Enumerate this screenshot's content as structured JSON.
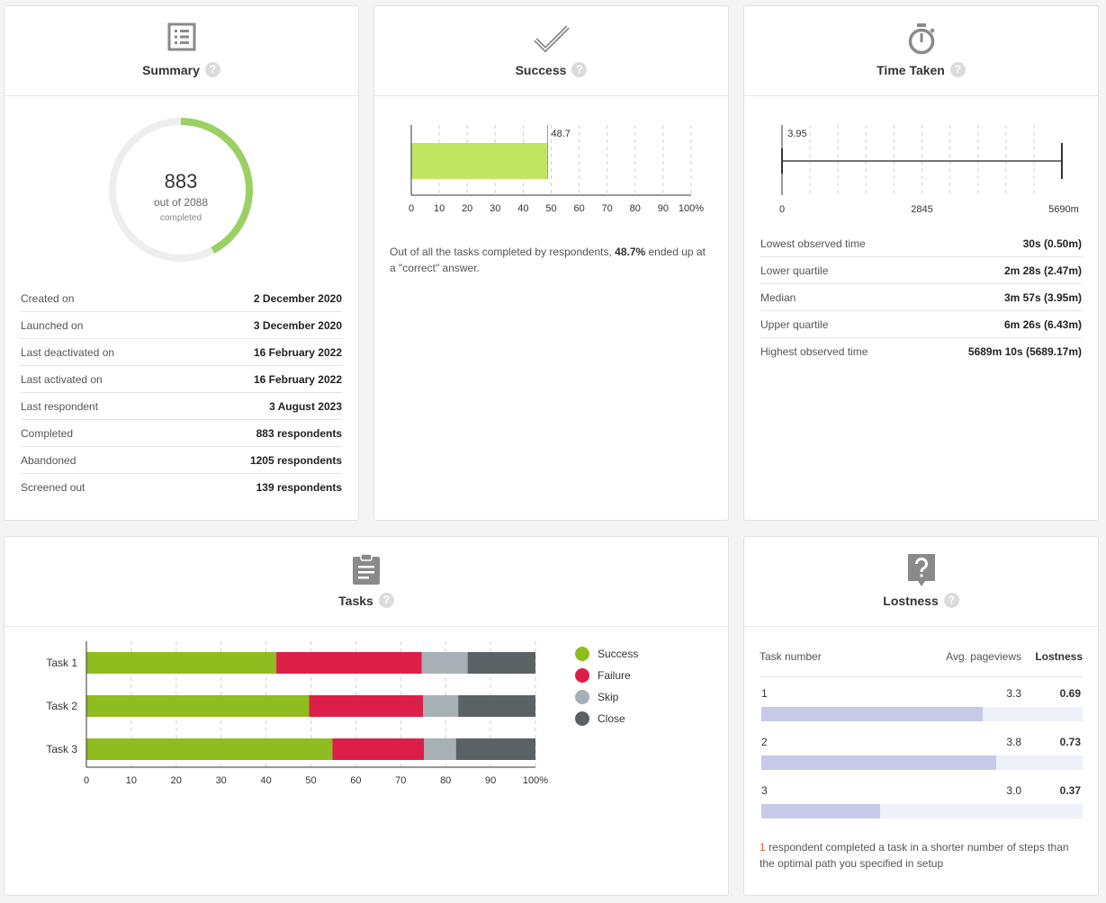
{
  "summary": {
    "title": "Summary",
    "help": "?",
    "completed_count": "883",
    "out_of": "out of 2088",
    "completed_label": "completed",
    "progress_fraction": 0.4229,
    "rows": [
      {
        "label": "Created on",
        "value": "2 December 2020"
      },
      {
        "label": "Launched on",
        "value": "3 December 2020"
      },
      {
        "label": "Last deactivated on",
        "value": "16 February 2022"
      },
      {
        "label": "Last activated on",
        "value": "16 February 2022"
      },
      {
        "label": "Last respondent",
        "value": "3 August 2023"
      },
      {
        "label": "Completed",
        "value": "883 respondents"
      },
      {
        "label": "Abandoned",
        "value": "1205 respondents"
      },
      {
        "label": "Screened out",
        "value": "139 respondents"
      }
    ]
  },
  "success": {
    "title": "Success",
    "help": "?",
    "desc_prefix": "Out of all the tasks completed by respondents, ",
    "desc_value": "48.7%",
    "desc_suffix": " ended up at a \"correct\" answer.",
    "chart_data": {
      "type": "bar",
      "orientation": "horizontal",
      "values": [
        48.7
      ],
      "value_label": "48.7",
      "xlim": [
        0,
        100
      ],
      "xticks": [
        "0",
        "10",
        "20",
        "30",
        "40",
        "50",
        "60",
        "70",
        "80",
        "90",
        "100%"
      ],
      "bar_color": "#bfe561"
    }
  },
  "time": {
    "title": "Time Taken",
    "help": "?",
    "chart_data": {
      "type": "box",
      "min": 0.5,
      "max": 5689.17,
      "median": 3.95,
      "median_label": "3.95",
      "xlim": [
        0,
        5690
      ],
      "xticks": [
        "0",
        "2845",
        "5690m"
      ]
    },
    "rows": [
      {
        "label": "Lowest observed time",
        "value": "30s (0.50m)"
      },
      {
        "label": "Lower quartile",
        "value": "2m 28s (2.47m)"
      },
      {
        "label": "Median",
        "value": "3m 57s (3.95m)"
      },
      {
        "label": "Upper quartile",
        "value": "6m 26s (6.43m)"
      },
      {
        "label": "Highest observed time",
        "value": "5689m 10s (5689.17m)"
      }
    ]
  },
  "tasks": {
    "title": "Tasks",
    "help": "?",
    "legend": [
      {
        "name": "Success",
        "color": "#8fbc1f"
      },
      {
        "name": "Failure",
        "color": "#dc1f48"
      },
      {
        "name": "Skip",
        "color": "#a6b0b5"
      },
      {
        "name": "Close",
        "color": "#5a6266"
      }
    ],
    "chart_data": {
      "type": "bar",
      "stacked": true,
      "orientation": "horizontal",
      "categories": [
        "Task 1",
        "Task 2",
        "Task 3"
      ],
      "series": [
        {
          "name": "Success",
          "values": [
            42.3,
            49.6,
            54.8
          ]
        },
        {
          "name": "Failure",
          "values": [
            32.4,
            25.4,
            20.4
          ]
        },
        {
          "name": "Skip",
          "values": [
            10.2,
            7.8,
            7.1
          ]
        },
        {
          "name": "Close",
          "values": [
            15.1,
            17.2,
            17.7
          ]
        }
      ],
      "xlim": [
        0,
        100
      ],
      "xticks": [
        "0",
        "10",
        "20",
        "30",
        "40",
        "50",
        "60",
        "70",
        "80",
        "90",
        "100%"
      ]
    }
  },
  "lostness": {
    "title": "Lostness",
    "help": "?",
    "col_task": "Task number",
    "col_pageviews": "Avg. pageviews",
    "col_lostness": "Lostness",
    "rows": [
      {
        "task": "1",
        "pageviews": "3.3",
        "lostness": "0.69",
        "fraction": 0.69
      },
      {
        "task": "2",
        "pageviews": "3.8",
        "lostness": "0.73",
        "fraction": 0.73
      },
      {
        "task": "3",
        "pageviews": "3.0",
        "lostness": "0.37",
        "fraction": 0.37
      }
    ],
    "note_count": "1",
    "note_text": " respondent completed a task in a shorter number of steps than the optimal path you specified in setup",
    "bar_color": "#c6cae8",
    "note_count_color": "#e8573c"
  }
}
